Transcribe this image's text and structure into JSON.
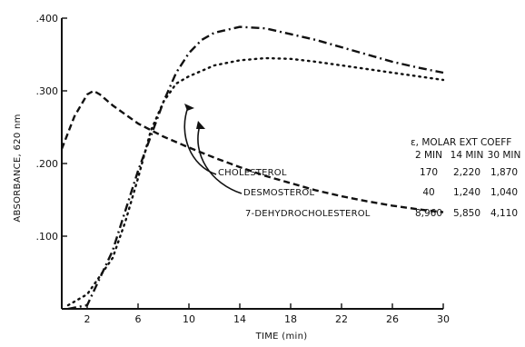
{
  "chart_data": {
    "type": "line",
    "xlabel": "TIME (min)",
    "ylabel": "ABSORBANCE, 620 nm",
    "xlim": [
      0,
      30
    ],
    "ylim": [
      0,
      0.4
    ],
    "x_ticks": [
      2,
      6,
      10,
      14,
      18,
      22,
      26,
      30
    ],
    "y_ticks": [
      0.1,
      0.2,
      0.3,
      0.4
    ],
    "y_tick_labels": [
      ".100",
      ".200",
      ".300",
      ".400"
    ],
    "grid": false,
    "series": [
      {
        "name": "CHOLESTEROL",
        "style": "dash-dot",
        "x": [
          0.5,
          2,
          4,
          6,
          8,
          9,
          10,
          11,
          12,
          14,
          16,
          18,
          20,
          22,
          24,
          26,
          28,
          30
        ],
        "y": [
          0.0,
          0.005,
          0.08,
          0.19,
          0.285,
          0.325,
          0.352,
          0.37,
          0.38,
          0.388,
          0.386,
          0.378,
          0.37,
          0.36,
          0.35,
          0.34,
          0.332,
          0.325
        ]
      },
      {
        "name": "DESMOSTEROL",
        "style": "dotted",
        "x": [
          0.5,
          2,
          4,
          5,
          6,
          7,
          8,
          9,
          10,
          12,
          14,
          16,
          18,
          20,
          22,
          24,
          26,
          28,
          30
        ],
        "y": [
          0.005,
          0.02,
          0.07,
          0.12,
          0.18,
          0.245,
          0.285,
          0.31,
          0.32,
          0.335,
          0.342,
          0.345,
          0.344,
          0.34,
          0.335,
          0.33,
          0.325,
          0.32,
          0.315
        ]
      },
      {
        "name": "7-DEHYDROCHOLESTEROL",
        "style": "dashed",
        "x": [
          0,
          1,
          2,
          2.5,
          3,
          4,
          6,
          8,
          10,
          12,
          14,
          16,
          18,
          20,
          22,
          24,
          26,
          28,
          30
        ],
        "y": [
          0.22,
          0.265,
          0.295,
          0.3,
          0.295,
          0.28,
          0.255,
          0.237,
          0.222,
          0.208,
          0.195,
          0.183,
          0.173,
          0.163,
          0.155,
          0.148,
          0.142,
          0.137,
          0.133
        ]
      }
    ],
    "table": {
      "title": "ε, MOLAR EXT COEFF",
      "columns": [
        "2 MIN",
        "14 MIN",
        "30 MIN"
      ],
      "rows": [
        {
          "label": "CHOLESTEROL",
          "values": [
            "170",
            "2,220",
            "1,870"
          ]
        },
        {
          "label": "DESMOSTEROL",
          "values": [
            "40",
            "1,240",
            "1,040"
          ]
        },
        {
          "label": "7-DEHYDROCHOLESTEROL",
          "values": [
            "8,960",
            "5,850",
            "4,110"
          ]
        }
      ]
    }
  }
}
